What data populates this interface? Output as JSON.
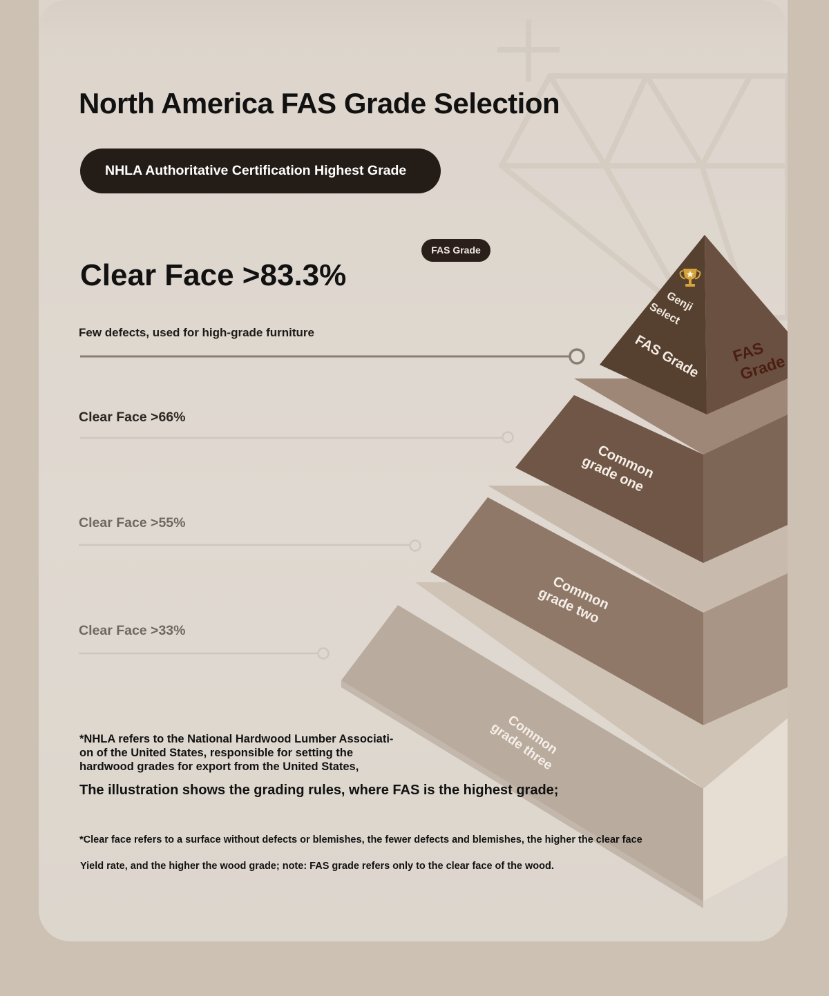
{
  "page": {
    "title": "North America FAS Grade Selection",
    "certification_pill": "NHLA Authoritative Certification Highest Grade"
  },
  "grades": {
    "top_clear_face": "Clear Face >83.3%",
    "top_description": "Few defects, used for high-grade furniture",
    "fas_badge": "FAS Grade",
    "levels": [
      {
        "clear_face": "Clear Face >66%"
      },
      {
        "clear_face": "Clear Face >55%"
      },
      {
        "clear_face": "Clear Face >33%"
      }
    ]
  },
  "pyramid": {
    "top_front_line1": "Genji",
    "top_front_line2": "Select",
    "top_front_grade": "FAS Grade",
    "top_side_line1": "FAS",
    "top_side_line2": "Grade",
    "tier1_line1": "Common",
    "tier1_line2": "grade one",
    "tier2_line1": "Common",
    "tier2_line2": "grade two",
    "tier3_line1": "Common",
    "tier3_line2": "grade three",
    "trophy_icon": "trophy-icon"
  },
  "notes": {
    "nhla_line1": "*NHLA refers to the National Hardwood Lumber Associati-",
    "nhla_line2": "on of the United States, responsible for setting the",
    "nhla_line3": "hardwood grades for export from the United States,",
    "illustration": "The illustration shows the grading rules, where FAS is the highest grade;",
    "clear_face_line1": "*Clear face refers to a surface without defects or blemishes, the fewer defects and blemishes, the higher the clear face",
    "clear_face_line2": "Yield rate, and the higher the wood grade; note: FAS grade refers only to the clear face of the wood."
  },
  "colors": {
    "page_bg": "#cdc1b4",
    "card_bg": "#ddd5cc",
    "pill_bg": "#241c17",
    "pyramid_top": "#5a4234",
    "tier1": "#73594a",
    "tier2": "#8e7868",
    "tier3": "#b8aa9c"
  }
}
